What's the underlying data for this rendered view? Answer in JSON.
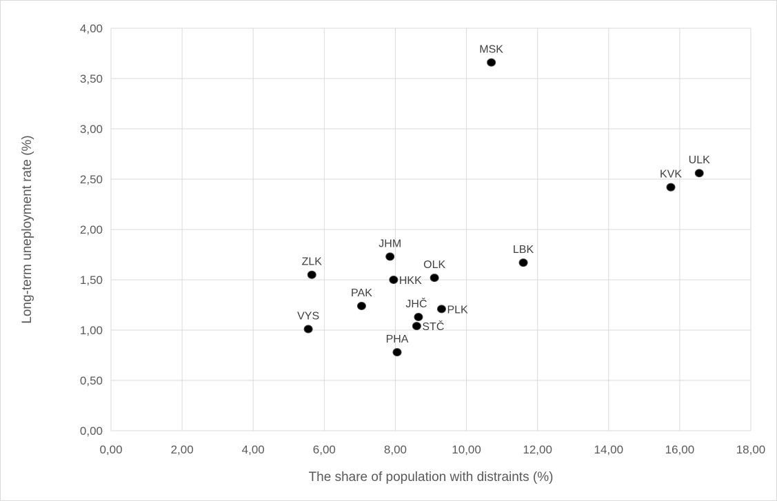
{
  "chart_data": {
    "type": "scatter",
    "xlabel": "The share of population with distraints  (%)",
    "ylabel": "Long-term uneployment rate (%)",
    "xlim": [
      0,
      18
    ],
    "ylim": [
      0,
      4
    ],
    "x_ticks": [
      "0,00",
      "2,00",
      "4,00",
      "6,00",
      "8,00",
      "10,00",
      "12,00",
      "14,00",
      "16,00",
      "18,00"
    ],
    "y_ticks": [
      "0,00",
      "0,50",
      "1,00",
      "1,50",
      "2,00",
      "2,50",
      "3,00",
      "3,50",
      "4,00"
    ],
    "grid": true,
    "legend": "none",
    "point_color": "#000000",
    "points": [
      {
        "label": "MSK",
        "x": 10.7,
        "y": 3.66,
        "label_pos": "above"
      },
      {
        "label": "ULK",
        "x": 16.55,
        "y": 2.56,
        "label_pos": "above"
      },
      {
        "label": "KVK",
        "x": 15.75,
        "y": 2.42,
        "label_pos": "above"
      },
      {
        "label": "LBK",
        "x": 11.6,
        "y": 1.67,
        "label_pos": "above"
      },
      {
        "label": "JHM",
        "x": 7.85,
        "y": 1.73,
        "label_pos": "above"
      },
      {
        "label": "ZLK",
        "x": 5.65,
        "y": 1.55,
        "label_pos": "above"
      },
      {
        "label": "OLK",
        "x": 9.1,
        "y": 1.52,
        "label_pos": "above"
      },
      {
        "label": "HKK",
        "x": 7.95,
        "y": 1.5,
        "label_pos": "right"
      },
      {
        "label": "PAK",
        "x": 7.05,
        "y": 1.24,
        "label_pos": "above"
      },
      {
        "label": "PLK",
        "x": 9.3,
        "y": 1.21,
        "label_pos": "right"
      },
      {
        "label": "JHČ",
        "x": 8.65,
        "y": 1.13,
        "label_pos": "above-left"
      },
      {
        "label": "STČ",
        "x": 8.6,
        "y": 1.04,
        "label_pos": "right"
      },
      {
        "label": "VYS",
        "x": 5.55,
        "y": 1.01,
        "label_pos": "above"
      },
      {
        "label": "PHA",
        "x": 8.05,
        "y": 0.78,
        "label_pos": "above"
      }
    ]
  }
}
